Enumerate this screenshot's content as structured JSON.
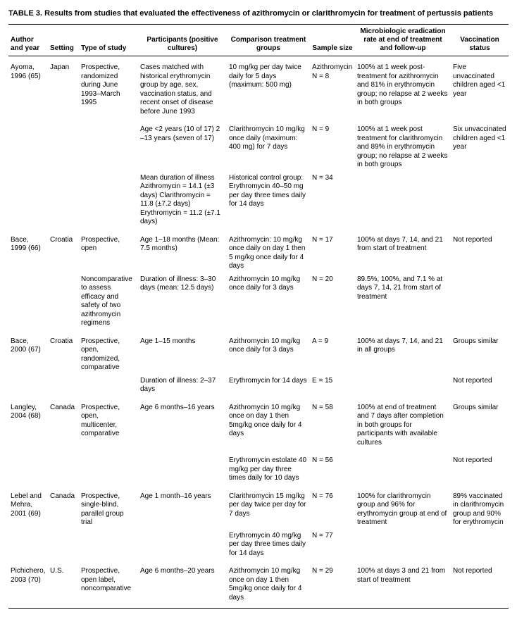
{
  "title": "TABLE 3. Results from studies that evaluated the effectiveness of azithromycin or clarithromycin for treatment of pertussis patients",
  "headers": {
    "author": "Author and year",
    "setting": "Setting",
    "type": "Type of study",
    "participants": "Participants (positive cultures)",
    "comparison": "Comparison treatment groups",
    "size": "Sample size",
    "micro": "Microbiologic eradication rate at end of treatment and follow-up",
    "vacc": "Vaccination status"
  },
  "rows": [
    {
      "gap": true,
      "author": "Ayoma, 1996 (65)",
      "setting": "Japan",
      "type": "Prospective, randomized during June 1993–March 1995",
      "part": "Cases matched with historical erythromycin group by age, sex, vaccination status, and recent onset of disease before June 1993",
      "comp": "10 mg/kg per day twice daily for 5 days (maximum: 500 mg)",
      "size": "Azithromycin N = 8",
      "micro": "100% at 1 week post-treatment for azithromycin and 81% in erythromycin group; no relapse at 2 weeks in both groups",
      "vacc": "Five unvaccinated children aged <1 year"
    },
    {
      "gap": true,
      "author": "",
      "setting": "",
      "type": "",
      "part": "Age <2 years (10 of 17) 2 –13 years (seven of 17)",
      "comp": "Clarithromycin 10 mg/kg once daily (maximum: 400 mg) for 7 days",
      "size": "N = 9",
      "micro": "100% at 1 week post treatment for clarithromycin and 89% in erythromycin group; no relapse at 2 weeks in both groups",
      "vacc": "Six unvaccinated children aged <1 year"
    },
    {
      "author": "",
      "setting": "",
      "type": "",
      "part": "Mean duration of illness Azithromycin = 14.1 (±3 days) Clarithromycin = 11.8 (±7.2 days) Erythromycin = 11.2 (±7.1 days)",
      "comp": "Historical control group: Erythromycin 40–50 mg per day three times daily for 14 days",
      "size": "N = 34",
      "micro": "",
      "vacc": ""
    },
    {
      "gap": true,
      "author": "Bace, 1999 (66)",
      "setting": "Croatia",
      "type": "Prospective, open",
      "part": "Age 1–18 months (Mean: 7.5 months)",
      "comp": "Azithromycin: 10 mg/kg once daily on day 1 then 5 mg/kg once daily for 4 days",
      "size": "N = 17",
      "micro": "100% at days 7, 14, and 21 from start of treatment",
      "vacc": "Not reported"
    },
    {
      "author": "",
      "setting": "",
      "type": "Noncomparative to assess efficacy and safety of two azithromycin regimens",
      "part": "Duration of illness: 3–30 days (mean: 12.5 days)",
      "comp": "Azithromycin 10 mg/kg once daily for 3 days",
      "size": "N = 20",
      "micro": "89.5%, 100%, and 7.1 % at days 7, 14, 21 from start of treatment",
      "vacc": ""
    },
    {
      "gap": true,
      "author": "Bace, 2000 (67)",
      "setting": "Croatia",
      "type": "Prospective, open, randomized, comparative",
      "part": "Age 1–15 months",
      "comp": "Azithromycin 10 mg/kg once daily for 3 days",
      "size": "A = 9",
      "micro": "100% at days 7, 14, and 21 in all groups",
      "vacc": "Groups similar"
    },
    {
      "author": "",
      "setting": "",
      "type": "",
      "part": "Duration of illness: 2–37 days",
      "comp": "Erythromycin for 14 days",
      "size": "E = 15",
      "micro": "",
      "vacc": "Not reported"
    },
    {
      "gap": true,
      "author": "Langley, 2004 (68)",
      "setting": "Canada",
      "type": "Prospective, open, multicenter, comparative",
      "part": "Age 6 months–16 years",
      "comp": "Azithromycin 10 mg/kg once on day 1 then 5mg/kg once daily for 4 days",
      "size": "N = 58",
      "micro": "100% at end of treatment and 7 days after completion in both groups for participants with available cultures",
      "vacc": "Groups similar"
    },
    {
      "gap": true,
      "author": "",
      "setting": "",
      "type": "",
      "part": "",
      "comp": "Erythromycin estolate 40 mg/kg per day three times daily for 10 days",
      "size": "N = 56",
      "micro": "",
      "vacc": "Not reported"
    },
    {
      "gap": true,
      "author": "Lebel and Mehra, 2001 (69)",
      "setting": "Canada",
      "type": "Prospective, single-blind, parallel group trial",
      "part": "Age 1 month–16 years",
      "comp": "Clarithromycin 15 mg/kg per day twice per day for 7 days",
      "size": "N = 76",
      "micro": "100% for clarithromycin group and 96% for erythromycin group at end of treatment",
      "vacc": "89% vaccinated in clarithromycin group and 90% for erythromycin"
    },
    {
      "author": "",
      "setting": "",
      "type": "",
      "part": "",
      "comp": "Erythromycin 40 mg/kg per day three times daily for 14 days",
      "size": "N = 77",
      "micro": "",
      "vacc": ""
    },
    {
      "gap": true,
      "author": "Pichichero, 2003 (70)",
      "setting": "U.S.",
      "type": "Prospective, open label, noncomparative",
      "part": "Age 6 months–20 years",
      "comp": "Azithromycin 10 mg/kg once on day 1 then 5mg/kg once daily for 4 days",
      "size": "N = 29",
      "micro": "100% at days 3 and 21 from start of treatment",
      "vacc": "Not reported"
    }
  ]
}
